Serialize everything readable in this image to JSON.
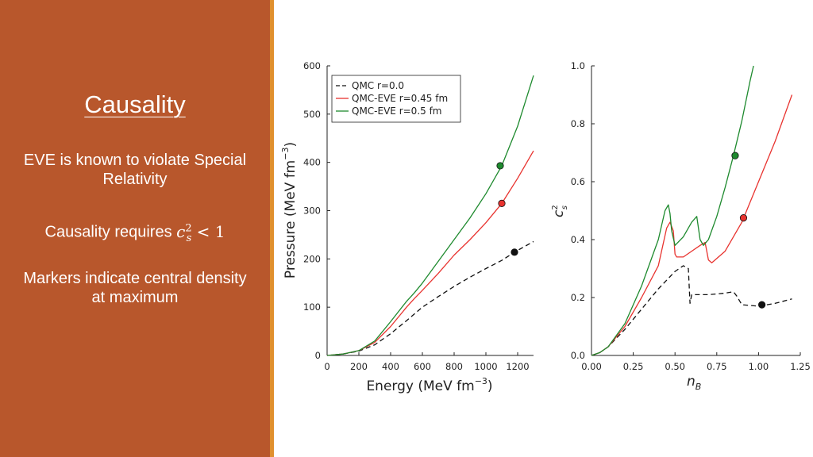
{
  "slide": {
    "title": "Causality",
    "bullet1": "EVE is known to violate Special Relativity",
    "bullet2_prefix": "Causality requires ",
    "bullet3": "Markers indicate central density at maximum",
    "colors": {
      "panel": "#b8572c",
      "accent": "#e0902e"
    }
  },
  "chart_data": [
    {
      "type": "line",
      "xlabel": "Energy (MeV fm",
      "xlabel_sup": "−3",
      "xlabel_end": ")",
      "ylabel": "Pressure (MeV fm",
      "ylabel_sup": "−3",
      "ylabel_end": ")",
      "xlim": [
        0,
        1300
      ],
      "ylim": [
        0,
        600
      ],
      "xticks": [
        0,
        200,
        400,
        600,
        800,
        1000,
        1200
      ],
      "yticks": [
        0,
        100,
        200,
        300,
        400,
        500,
        600
      ],
      "legend_position": "top-left",
      "series": [
        {
          "name": "QMC r=0.0",
          "color": "#111111",
          "dash": true,
          "x": [
            0,
            100,
            200,
            300,
            400,
            500,
            600,
            700,
            800,
            900,
            1000,
            1100,
            1180,
            1300
          ],
          "y": [
            0,
            3,
            9,
            22,
            45,
            72,
            100,
            122,
            143,
            162,
            180,
            197,
            214,
            236
          ],
          "marker": [
            1180,
            214
          ]
        },
        {
          "name": "QMC-EVE r=0.45 fm",
          "color": "#e8332f",
          "dash": false,
          "x": [
            0,
            100,
            200,
            300,
            400,
            500,
            550,
            600,
            700,
            800,
            900,
            1000,
            1100,
            1200,
            1300
          ],
          "y": [
            0,
            3,
            10,
            27,
            60,
            100,
            118,
            135,
            170,
            208,
            240,
            275,
            315,
            367,
            424
          ],
          "marker": [
            1100,
            315
          ]
        },
        {
          "name": "QMC-EVE r=0.5 fm",
          "color": "#1e8a2e",
          "dash": false,
          "x": [
            0,
            100,
            200,
            300,
            400,
            500,
            550,
            600,
            700,
            800,
            900,
            1000,
            1100,
            1200,
            1300
          ],
          "y": [
            0,
            3,
            10,
            30,
            70,
            112,
            130,
            150,
            195,
            240,
            285,
            335,
            393,
            475,
            580
          ],
          "marker": [
            1090,
            393
          ]
        }
      ]
    },
    {
      "type": "line",
      "xlabel": "n",
      "xlabel_sub": "B",
      "ylabel": "c",
      "ylabel_sup": "2",
      "ylabel_sub": "s",
      "xlim": [
        0,
        1.25
      ],
      "ylim": [
        0,
        1.0
      ],
      "xticks": [
        0.0,
        0.25,
        0.5,
        0.75,
        1.0,
        1.25
      ],
      "xtick_labels": [
        "0.00",
        "0.25",
        "0.50",
        "0.75",
        "1.00",
        "1.25"
      ],
      "yticks": [
        0.0,
        0.2,
        0.4,
        0.6,
        0.8,
        1.0
      ],
      "ytick_labels": [
        "0.0",
        "0.2",
        "0.4",
        "0.6",
        "0.8",
        "1.0"
      ],
      "series": [
        {
          "name": "QMC r=0.0",
          "color": "#111111",
          "dash": true,
          "x": [
            0,
            0.05,
            0.1,
            0.2,
            0.3,
            0.4,
            0.5,
            0.55,
            0.58,
            0.59,
            0.6,
            0.7,
            0.8,
            0.85,
            0.87,
            0.9,
            1.0,
            1.1,
            1.2
          ],
          "y": [
            0,
            0.01,
            0.03,
            0.09,
            0.16,
            0.23,
            0.29,
            0.31,
            0.3,
            0.18,
            0.21,
            0.21,
            0.215,
            0.22,
            0.205,
            0.175,
            0.17,
            0.18,
            0.195
          ],
          "marker": [
            1.02,
            0.175
          ]
        },
        {
          "name": "QMC-EVE r=0.45 fm",
          "color": "#e8332f",
          "dash": false,
          "x": [
            0,
            0.05,
            0.1,
            0.2,
            0.3,
            0.4,
            0.45,
            0.47,
            0.49,
            0.5,
            0.51,
            0.55,
            0.6,
            0.65,
            0.68,
            0.7,
            0.72,
            0.8,
            0.9,
            1.0,
            1.1,
            1.2
          ],
          "y": [
            0,
            0.01,
            0.03,
            0.1,
            0.2,
            0.31,
            0.44,
            0.46,
            0.43,
            0.35,
            0.34,
            0.34,
            0.36,
            0.38,
            0.39,
            0.33,
            0.32,
            0.36,
            0.46,
            0.6,
            0.74,
            0.9
          ],
          "marker": [
            0.91,
            0.475
          ]
        },
        {
          "name": "QMC-EVE r=0.5 fm",
          "color": "#1e8a2e",
          "dash": false,
          "x": [
            0,
            0.05,
            0.1,
            0.2,
            0.3,
            0.4,
            0.44,
            0.46,
            0.47,
            0.48,
            0.5,
            0.55,
            0.6,
            0.63,
            0.65,
            0.67,
            0.7,
            0.75,
            0.8,
            0.85,
            0.9,
            0.95,
            0.97
          ],
          "y": [
            0,
            0.01,
            0.03,
            0.11,
            0.24,
            0.4,
            0.5,
            0.52,
            0.49,
            0.43,
            0.38,
            0.41,
            0.46,
            0.48,
            0.4,
            0.38,
            0.4,
            0.48,
            0.58,
            0.69,
            0.81,
            0.95,
            1.0
          ],
          "marker": [
            0.86,
            0.69
          ]
        }
      ]
    }
  ]
}
